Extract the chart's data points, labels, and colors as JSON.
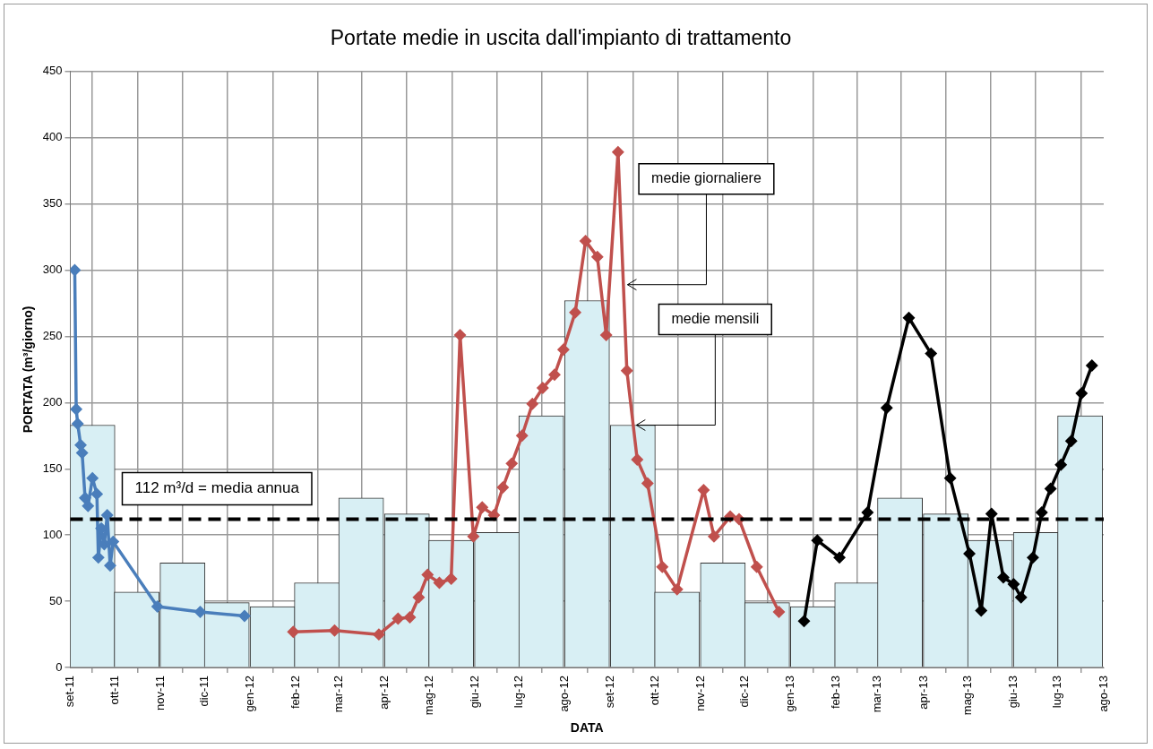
{
  "chart_data": {
    "type": "line",
    "title": "Portate medie in uscita dall'impianto di trattamento",
    "xlabel": "DATA",
    "ylabel": "PORTATA (m³/giorno)",
    "xlim": [
      "2011-09-01",
      "2013-08-01"
    ],
    "ylim": [
      0,
      450
    ],
    "yticks": [
      0,
      50,
      100,
      150,
      200,
      250,
      300,
      350,
      400,
      450
    ],
    "xticks": [
      {
        "value": "2011-09-01",
        "label": "set-11"
      },
      {
        "value": "2011-10-01",
        "label": "ott-11"
      },
      {
        "value": "2011-11-01",
        "label": "nov-11"
      },
      {
        "value": "2011-12-01",
        "label": "dic-11"
      },
      {
        "value": "2012-01-01",
        "label": "gen-12"
      },
      {
        "value": "2012-02-01",
        "label": "feb-12"
      },
      {
        "value": "2012-03-01",
        "label": "mar-12"
      },
      {
        "value": "2012-04-01",
        "label": "apr-12"
      },
      {
        "value": "2012-05-01",
        "label": "mag-12"
      },
      {
        "value": "2012-06-01",
        "label": "giu-12"
      },
      {
        "value": "2012-07-01",
        "label": "lug-12"
      },
      {
        "value": "2012-08-01",
        "label": "ago-12"
      },
      {
        "value": "2012-09-01",
        "label": "set-12"
      },
      {
        "value": "2012-10-01",
        "label": "ott-12"
      },
      {
        "value": "2012-11-01",
        "label": "nov-12"
      },
      {
        "value": "2012-12-01",
        "label": "dic-12"
      },
      {
        "value": "2013-01-01",
        "label": "gen-13"
      },
      {
        "value": "2013-02-01",
        "label": "feb-13"
      },
      {
        "value": "2013-03-01",
        "label": "mar-13"
      },
      {
        "value": "2013-04-01",
        "label": "apr-13"
      },
      {
        "value": "2013-05-01",
        "label": "mag-13"
      },
      {
        "value": "2013-06-01",
        "label": "giu-13"
      },
      {
        "value": "2013-07-01",
        "label": "lug-13"
      },
      {
        "value": "2013-08-01",
        "label": "ago-13"
      }
    ],
    "grid": true,
    "marker": "diamond",
    "line_style": "solid",
    "series": [
      {
        "type": "bar",
        "color": "#d8eff4",
        "x": [
          "2011-09-16",
          "2011-10-16",
          "2011-11-16",
          "2011-12-16",
          "2012-01-16",
          "2012-02-15",
          "2012-03-16",
          "2012-04-16",
          "2012-05-16",
          "2012-06-16",
          "2012-07-16",
          "2012-08-16",
          "2012-09-16",
          "2012-10-16",
          "2012-11-16",
          "2012-12-16",
          "2013-01-16",
          "2013-02-15",
          "2013-03-16",
          "2013-04-16",
          "2013-05-16",
          "2013-06-16",
          "2013-07-16"
        ],
        "values": [
          183,
          57,
          79,
          49,
          46,
          64,
          128,
          116,
          96,
          102,
          190,
          277,
          183,
          57,
          79,
          49,
          46,
          64,
          128,
          116,
          96,
          102,
          190
        ]
      },
      {
        "color": "#4a7ebb",
        "x": [
          "2011-09-04",
          "2011-09-05",
          "2011-09-06",
          "2011-09-08",
          "2011-09-09",
          "2011-09-11",
          "2011-09-13",
          "2011-09-16",
          "2011-09-19",
          "2011-09-20",
          "2011-09-22",
          "2011-09-24",
          "2011-09-26",
          "2011-09-28",
          "2011-09-30",
          "2011-10-30",
          "2011-11-28",
          "2011-12-28"
        ],
        "values": [
          300,
          195,
          184,
          168,
          162,
          128,
          122,
          143,
          131,
          83,
          105,
          93,
          115,
          77,
          95,
          46,
          42,
          39
        ]
      },
      {
        "color": "#c0504d",
        "x": [
          "2012-01-30",
          "2012-02-27",
          "2012-03-28",
          "2012-04-10",
          "2012-04-18",
          "2012-04-24",
          "2012-04-30",
          "2012-05-08",
          "2012-05-16",
          "2012-05-22",
          "2012-05-31",
          "2012-06-06",
          "2012-06-14",
          "2012-06-20",
          "2012-06-26",
          "2012-07-03",
          "2012-07-10",
          "2012-07-17",
          "2012-07-25",
          "2012-07-31",
          "2012-08-08",
          "2012-08-15",
          "2012-08-23",
          "2012-08-29",
          "2012-09-06",
          "2012-09-12",
          "2012-09-19",
          "2012-09-26",
          "2012-10-06",
          "2012-10-16",
          "2012-11-03",
          "2012-11-10",
          "2012-11-21",
          "2012-11-27",
          "2012-12-09",
          "2012-12-24"
        ],
        "values": [
          27,
          28,
          25,
          37,
          38,
          53,
          70,
          64,
          67,
          251,
          99,
          121,
          115,
          136,
          154,
          175,
          199,
          211,
          221,
          240,
          268,
          322,
          310,
          251,
          389,
          224,
          157,
          139,
          76,
          59,
          134,
          99,
          114,
          112,
          76,
          42
        ]
      },
      {
        "color": "#000000",
        "x": [
          "2013-01-10",
          "2013-01-19",
          "2013-02-03",
          "2013-02-22",
          "2013-03-07",
          "2013-03-22",
          "2013-04-06",
          "2013-04-19",
          "2013-05-02",
          "2013-05-10",
          "2013-05-17",
          "2013-05-25",
          "2013-06-01",
          "2013-06-06",
          "2013-06-14",
          "2013-06-20",
          "2013-06-26",
          "2013-07-03",
          "2013-07-10",
          "2013-07-17",
          "2013-07-24"
        ],
        "values": [
          35,
          96,
          83,
          117,
          196,
          264,
          237,
          143,
          86,
          43,
          116,
          68,
          63,
          53,
          83,
          117,
          135,
          153,
          171,
          207,
          228
        ]
      }
    ],
    "ref_lines": [
      {
        "axis": "y",
        "value": 112,
        "label": "112 m³/d = media annua",
        "color": "#000000",
        "line_style": "dashed"
      }
    ],
    "annotations": [
      {
        "text": "medie giornaliere",
        "x": "2012-09-10",
        "y": 289
      },
      {
        "text": "medie mensili",
        "x": "2012-09-16",
        "y": 183
      }
    ]
  }
}
